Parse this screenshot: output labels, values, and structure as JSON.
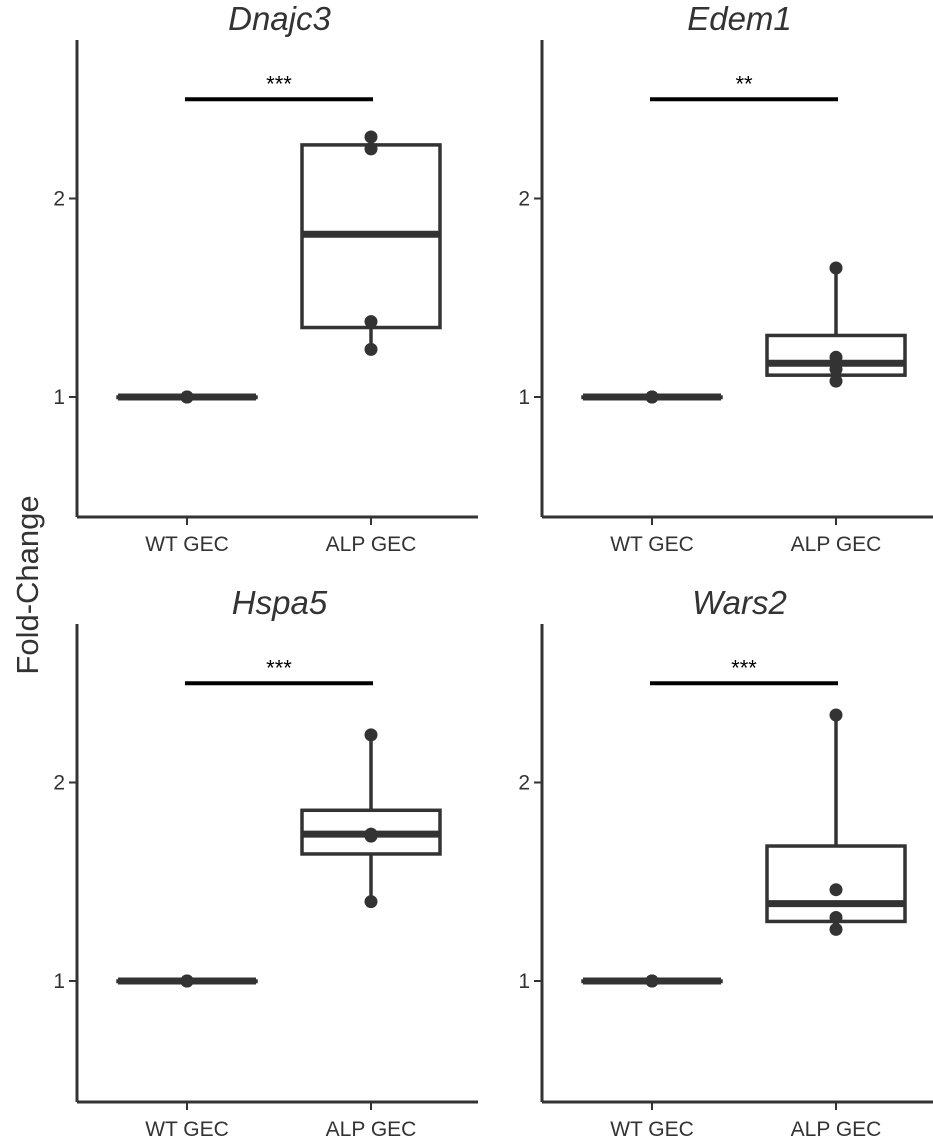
{
  "figure": {
    "ylabel": "Fold-Change"
  },
  "chart_data": [
    {
      "type": "box",
      "title": "Dnajc3",
      "categories": [
        "WT GEC",
        "ALP GEC"
      ],
      "ylim": [
        0.4,
        2.8
      ],
      "yticks": [
        1,
        2
      ],
      "boxes": [
        {
          "category": "WT GEC",
          "min": 1,
          "q1": 1,
          "median": 1,
          "q3": 1,
          "max": 1
        },
        {
          "category": "ALP GEC",
          "min": 1.24,
          "q1": 1.35,
          "median": 1.82,
          "q3": 2.27,
          "max": 2.31
        }
      ],
      "points": [
        {
          "category": "WT GEC",
          "values": [
            1,
            1,
            1,
            1
          ]
        },
        {
          "category": "ALP GEC",
          "values": [
            2.31,
            2.25,
            1.38,
            1.24
          ]
        }
      ],
      "significance": {
        "from": "WT GEC",
        "to": "ALP GEC",
        "y": 2.5,
        "label": "***"
      }
    },
    {
      "type": "box",
      "title": "Edem1",
      "categories": [
        "WT GEC",
        "ALP GEC"
      ],
      "ylim": [
        0.4,
        2.8
      ],
      "yticks": [
        1,
        2
      ],
      "boxes": [
        {
          "category": "WT GEC",
          "min": 1,
          "q1": 1,
          "median": 1,
          "q3": 1,
          "max": 1
        },
        {
          "category": "ALP GEC",
          "min": 1.08,
          "q1": 1.11,
          "median": 1.17,
          "q3": 1.31,
          "max": 1.65
        }
      ],
      "points": [
        {
          "category": "WT GEC",
          "values": [
            1,
            1,
            1,
            1
          ]
        },
        {
          "category": "ALP GEC",
          "values": [
            1.65,
            1.2,
            1.14,
            1.08
          ]
        }
      ],
      "significance": {
        "from": "WT GEC",
        "to": "ALP GEC",
        "y": 2.5,
        "label": "**"
      }
    },
    {
      "type": "box",
      "title": "Hspa5",
      "categories": [
        "WT GEC",
        "ALP GEC"
      ],
      "ylim": [
        0.4,
        2.8
      ],
      "yticks": [
        1,
        2
      ],
      "boxes": [
        {
          "category": "WT GEC",
          "min": 1,
          "q1": 1,
          "median": 1,
          "q3": 1,
          "max": 1
        },
        {
          "category": "ALP GEC",
          "min": 1.4,
          "q1": 1.64,
          "median": 1.74,
          "q3": 1.86,
          "max": 2.24
        }
      ],
      "points": [
        {
          "category": "WT GEC",
          "values": [
            1,
            1,
            1,
            1
          ]
        },
        {
          "category": "ALP GEC",
          "values": [
            2.24,
            1.73,
            1.74,
            1.4
          ]
        }
      ],
      "significance": {
        "from": "WT GEC",
        "to": "ALP GEC",
        "y": 2.5,
        "label": "***"
      }
    },
    {
      "type": "box",
      "title": "Wars2",
      "categories": [
        "WT GEC",
        "ALP GEC"
      ],
      "ylim": [
        0.4,
        2.8
      ],
      "yticks": [
        1,
        2
      ],
      "boxes": [
        {
          "category": "WT GEC",
          "min": 1,
          "q1": 1,
          "median": 1,
          "q3": 1,
          "max": 1
        },
        {
          "category": "ALP GEC",
          "min": 1.26,
          "q1": 1.3,
          "median": 1.39,
          "q3": 1.68,
          "max": 2.34
        }
      ],
      "points": [
        {
          "category": "WT GEC",
          "values": [
            1,
            1,
            1,
            1
          ]
        },
        {
          "category": "ALP GEC",
          "values": [
            2.34,
            1.46,
            1.32,
            1.26
          ]
        }
      ],
      "significance": {
        "from": "WT GEC",
        "to": "ALP GEC",
        "y": 2.5,
        "label": "***"
      }
    }
  ]
}
